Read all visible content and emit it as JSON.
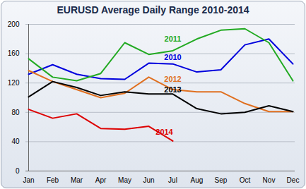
{
  "chart_data": {
    "type": "line",
    "title": "EURUSD Average Daily Range 2010-2014",
    "categories": [
      "Jan",
      "Feb",
      "Mar",
      "Apr",
      "May",
      "Jun",
      "Jul",
      "Aug",
      "Sep",
      "Oct",
      "Nov",
      "Dec"
    ],
    "series": [
      {
        "name": "2010",
        "color": "#0000dd",
        "values": [
          132,
          145,
          132,
          126,
          125,
          147,
          146,
          135,
          138,
          172,
          180,
          146
        ]
      },
      {
        "name": "2011",
        "color": "#22aa22",
        "values": [
          153,
          128,
          123,
          133,
          175,
          159,
          164,
          180,
          192,
          194,
          175,
          123
        ]
      },
      {
        "name": "2012",
        "color": "#e07020",
        "values": [
          137,
          122,
          111,
          100,
          106,
          128,
          111,
          108,
          108,
          92,
          81,
          81
        ]
      },
      {
        "name": "2013",
        "color": "#000000",
        "values": [
          101,
          122,
          114,
          103,
          108,
          105,
          105,
          85,
          78,
          80,
          89,
          81
        ]
      },
      {
        "name": "2014",
        "color": "#dd0000",
        "values": [
          84,
          72,
          78,
          58,
          57,
          61,
          41,
          null,
          null,
          null,
          null,
          null
        ]
      }
    ],
    "ylim": [
      0,
      200
    ],
    "yticks": [
      0,
      40,
      80,
      120,
      160,
      200
    ],
    "grid": true
  }
}
